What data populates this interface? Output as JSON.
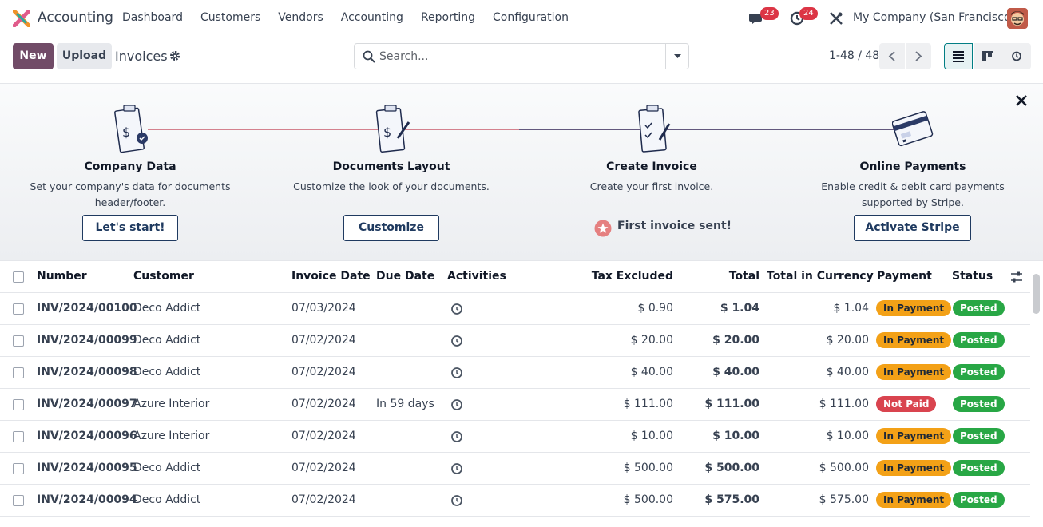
{
  "navbar": {
    "app_name": "Accounting",
    "menu": [
      "Dashboard",
      "Customers",
      "Vendors",
      "Accounting",
      "Reporting",
      "Configuration"
    ],
    "messages_count": "23",
    "activities_count": "24",
    "company": "My Company (San Francisco)"
  },
  "control": {
    "new_label": "New",
    "upload_label": "Upload",
    "title": "Invoices",
    "search_placeholder": "Search...",
    "pager": "1-48 / 48"
  },
  "onboarding": {
    "steps": [
      {
        "title": "Company Data",
        "desc": "Set your company's data for documents header/footer.",
        "button": "Let's start!"
      },
      {
        "title": "Documents Layout",
        "desc": "Customize the look of your documents.",
        "button": "Customize"
      },
      {
        "title": "Create Invoice",
        "desc": "Create your first invoice.",
        "done": "First invoice sent!"
      },
      {
        "title": "Online Payments",
        "desc": "Enable credit & debit card payments supported by Stripe.",
        "button": "Activate Stripe"
      }
    ]
  },
  "table": {
    "headers": {
      "number": "Number",
      "customer": "Customer",
      "invoice_date": "Invoice Date",
      "due_date": "Due Date",
      "activities": "Activities",
      "tax_excluded": "Tax Excluded",
      "total": "Total",
      "total_currency": "Total in Currency",
      "payment": "Payment",
      "status": "Status"
    },
    "rows": [
      {
        "number": "INV/2024/00100",
        "customer": "Deco Addict",
        "invoice_date": "07/03/2024",
        "due_date": "",
        "tax_excluded": "$ 0.90",
        "total": "$ 1.04",
        "total_currency": "$ 1.04",
        "payment": "In Payment",
        "status": "Posted"
      },
      {
        "number": "INV/2024/00099",
        "customer": "Deco Addict",
        "invoice_date": "07/02/2024",
        "due_date": "",
        "tax_excluded": "$ 20.00",
        "total": "$ 20.00",
        "total_currency": "$ 20.00",
        "payment": "In Payment",
        "status": "Posted"
      },
      {
        "number": "INV/2024/00098",
        "customer": "Deco Addict",
        "invoice_date": "07/02/2024",
        "due_date": "",
        "tax_excluded": "$ 40.00",
        "total": "$ 40.00",
        "total_currency": "$ 40.00",
        "payment": "In Payment",
        "status": "Posted"
      },
      {
        "number": "INV/2024/00097",
        "customer": "Azure Interior",
        "invoice_date": "07/02/2024",
        "due_date": "In 59 days",
        "tax_excluded": "$ 111.00",
        "total": "$ 111.00",
        "total_currency": "$ 111.00",
        "payment": "Not Paid",
        "status": "Posted"
      },
      {
        "number": "INV/2024/00096",
        "customer": "Azure Interior",
        "invoice_date": "07/02/2024",
        "due_date": "",
        "tax_excluded": "$ 10.00",
        "total": "$ 10.00",
        "total_currency": "$ 10.00",
        "payment": "In Payment",
        "status": "Posted"
      },
      {
        "number": "INV/2024/00095",
        "customer": "Deco Addict",
        "invoice_date": "07/02/2024",
        "due_date": "",
        "tax_excluded": "$ 500.00",
        "total": "$ 500.00",
        "total_currency": "$ 500.00",
        "payment": "In Payment",
        "status": "Posted"
      },
      {
        "number": "INV/2024/00094",
        "customer": "Deco Addict",
        "invoice_date": "07/02/2024",
        "due_date": "",
        "tax_excluded": "$ 500.00",
        "total": "$ 575.00",
        "total_currency": "$ 575.00",
        "payment": "In Payment",
        "status": "Posted"
      }
    ]
  },
  "colors": {
    "brand": "#714b67",
    "accent": "#017e84",
    "in_payment": "#f3a117",
    "not_paid": "#d9444f",
    "posted": "#28a745"
  },
  "icons": [
    "chat-icon",
    "clock-icon",
    "tools-icon",
    "gear-icon",
    "search-icon",
    "caret-down-icon",
    "chevron-left-icon",
    "chevron-right-icon",
    "list-view-icon",
    "kanban-view-icon",
    "activity-view-icon",
    "close-icon",
    "star-icon",
    "settings-sliders-icon"
  ]
}
